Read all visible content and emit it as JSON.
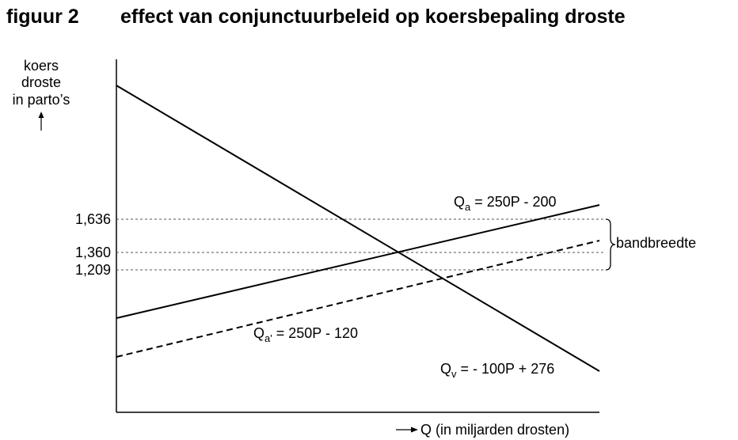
{
  "header": {
    "figure": "figuur 2",
    "title": "effect van conjunctuurbeleid op koersbepaling droste"
  },
  "y_axis": {
    "label_lines": [
      "koers",
      "droste",
      "in parto’s"
    ],
    "ticks": [
      "1,636",
      "1,360",
      "1,209"
    ]
  },
  "x_axis": {
    "label": "Q (in miljarden drosten)"
  },
  "lines": [
    {
      "main": "Q",
      "sub": "a",
      "rest": " = 250P - 200"
    },
    {
      "main": "Q",
      "sub": "a'",
      "rest": " = 250P - 120"
    },
    {
      "main": "Q",
      "sub": "v",
      "rest": " = - 100P + 276"
    }
  ],
  "band": {
    "label": "bandbreedte"
  }
}
